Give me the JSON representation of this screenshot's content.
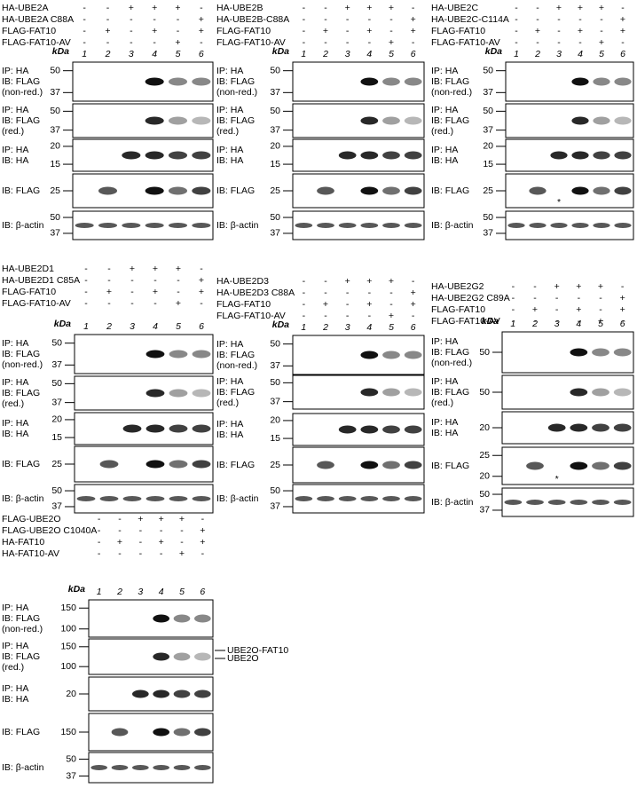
{
  "panels": [
    {
      "rows": [
        {
          "label": "HA-UBE2A",
          "signs": [
            "-",
            "-",
            "+",
            "+",
            "+",
            "-"
          ]
        },
        {
          "label": "HA-UBE2A C88A",
          "signs": [
            "-",
            "-",
            "-",
            "-",
            "-",
            "+"
          ]
        },
        {
          "label": "FLAG-FAT10",
          "signs": [
            "-",
            "+",
            "-",
            "+",
            "-",
            "+"
          ]
        },
        {
          "label": "FLAG-FAT10-AV",
          "signs": [
            "-",
            "-",
            "-",
            "-",
            "+",
            "-"
          ]
        }
      ],
      "lanes": [
        "1",
        "2",
        "3",
        "4",
        "5",
        "6"
      ],
      "kda": "kDa",
      "blots": [
        {
          "label": [
            "IP: HA",
            "IB: FLAG",
            "(non-red.)"
          ],
          "markers": [
            "50",
            "37"
          ]
        },
        {
          "label": [
            "IP: HA",
            "IB: FLAG",
            "(red.)"
          ],
          "markers": [
            "50",
            "37"
          ]
        },
        {
          "label": [
            "IP: HA",
            "IB: HA"
          ],
          "markers": [
            "20",
            "15"
          ]
        },
        {
          "label": [
            "IB: FLAG"
          ],
          "markers": [
            "25"
          ]
        },
        {
          "label": [
            "IB: β-actin"
          ],
          "markers": [
            "50",
            "37"
          ]
        }
      ]
    },
    {
      "rows": [
        {
          "label": "HA-UBE2B",
          "signs": [
            "-",
            "-",
            "+",
            "+",
            "+",
            "-"
          ]
        },
        {
          "label": "HA-UBE2B-C88A",
          "signs": [
            "-",
            "-",
            "-",
            "-",
            "-",
            "+"
          ]
        },
        {
          "label": "FLAG-FAT10",
          "signs": [
            "-",
            "+",
            "-",
            "+",
            "-",
            "+"
          ]
        },
        {
          "label": "FLAG-FAT10-AV",
          "signs": [
            "-",
            "-",
            "-",
            "-",
            "+",
            "-"
          ]
        }
      ],
      "lanes": [
        "1",
        "2",
        "3",
        "4",
        "5",
        "6"
      ],
      "kda": "kDa",
      "blots": [
        {
          "label": [
            "IP: HA",
            "IB: FLAG",
            "(non-red.)"
          ],
          "markers": [
            "50",
            "37"
          ]
        },
        {
          "label": [
            "IP: HA",
            "IB: FLAG",
            "(red.)"
          ],
          "markers": [
            "50",
            "37"
          ]
        },
        {
          "label": [
            "IP: HA",
            "IB: HA"
          ],
          "markers": [
            "20",
            "15"
          ]
        },
        {
          "label": [
            "IB: FLAG"
          ],
          "markers": [
            "25"
          ]
        },
        {
          "label": [
            "IB: β-actin"
          ],
          "markers": [
            "50",
            "37"
          ]
        }
      ]
    },
    {
      "rows": [
        {
          "label": "HA-UBE2C",
          "signs": [
            "-",
            "-",
            "+",
            "+",
            "+",
            "-"
          ]
        },
        {
          "label": "HA-UBE2C-C114A",
          "signs": [
            "-",
            "-",
            "-",
            "-",
            "-",
            "+"
          ]
        },
        {
          "label": "FLAG-FAT10",
          "signs": [
            "-",
            "+",
            "-",
            "+",
            "-",
            "+"
          ]
        },
        {
          "label": "FLAG-FAT10-AV",
          "signs": [
            "-",
            "-",
            "-",
            "-",
            "+",
            "-"
          ]
        }
      ],
      "lanes": [
        "1",
        "2",
        "3",
        "4",
        "5",
        "6"
      ],
      "kda": "kDa",
      "blots": [
        {
          "label": [
            "IP: HA",
            "IB: FLAG",
            "(non-red.)"
          ],
          "markers": [
            "50",
            "37"
          ]
        },
        {
          "label": [
            "IP: HA",
            "IB: FLAG",
            "(red.)"
          ],
          "markers": [
            "50",
            "37"
          ]
        },
        {
          "label": [
            "IP: HA",
            "IB: HA"
          ],
          "markers": [
            "20",
            "15"
          ]
        },
        {
          "label": [
            "IB: FLAG"
          ],
          "markers": [
            "25"
          ],
          "asterisk": "*"
        },
        {
          "label": [
            "IB: β-actin"
          ],
          "markers": [
            "50",
            "37"
          ]
        }
      ]
    },
    {
      "rows": [
        {
          "label": "HA-UBE2D1",
          "signs": [
            "-",
            "-",
            "+",
            "+",
            "+",
            "-"
          ]
        },
        {
          "label": "HA-UBE2D1 C85A",
          "signs": [
            "-",
            "-",
            "-",
            "-",
            "-",
            "+"
          ]
        },
        {
          "label": "FLAG-FAT10",
          "signs": [
            "-",
            "+",
            "-",
            "+",
            "-",
            "+"
          ]
        },
        {
          "label": "FLAG-FAT10-AV",
          "signs": [
            "-",
            "-",
            "-",
            "-",
            "+",
            "-"
          ]
        }
      ],
      "lanes": [
        "1",
        "2",
        "3",
        "4",
        "5",
        "6"
      ],
      "kda": "kDa",
      "blots": [
        {
          "label": [
            "IP: HA",
            "IB: FLAG",
            "(non-red.)"
          ],
          "markers": [
            "50",
            "37"
          ]
        },
        {
          "label": [
            "IP: HA",
            "IB: FLAG",
            "(red.)"
          ],
          "markers": [
            "50",
            "37"
          ]
        },
        {
          "label": [
            "IP: HA",
            "IB: HA"
          ],
          "markers": [
            "20",
            "15"
          ]
        },
        {
          "label": [
            "IB: FLAG"
          ],
          "markers": [
            "25"
          ]
        },
        {
          "label": [
            "IB: β-actin"
          ],
          "markers": [
            "50",
            "37"
          ]
        }
      ]
    },
    {
      "rows": [
        {
          "label": "HA-UBE2D3",
          "signs": [
            "-",
            "-",
            "+",
            "+",
            "+",
            "-"
          ]
        },
        {
          "label": "HA-UBE2D3 C88A",
          "signs": [
            "-",
            "-",
            "-",
            "-",
            "-",
            "+"
          ]
        },
        {
          "label": "FLAG-FAT10",
          "signs": [
            "-",
            "+",
            "-",
            "+",
            "-",
            "+"
          ]
        },
        {
          "label": "FLAG-FAT10-AV",
          "signs": [
            "-",
            "-",
            "-",
            "-",
            "+",
            "-"
          ]
        }
      ],
      "lanes": [
        "1",
        "2",
        "3",
        "4",
        "5",
        "6"
      ],
      "kda": "kDa",
      "blots": [
        {
          "label": [
            "IP: HA",
            "IB: FLAG",
            "(non-red.)"
          ],
          "markers": [
            "50",
            "37"
          ]
        },
        {
          "label": [
            "IP: HA",
            "IB: FLAG",
            "(red.)"
          ],
          "markers": [
            "50",
            "37"
          ]
        },
        {
          "label": [
            "IP: HA",
            "IB: HA"
          ],
          "markers": [
            "20",
            "15"
          ]
        },
        {
          "label": [
            "IB: FLAG"
          ],
          "markers": [
            "25"
          ]
        },
        {
          "label": [
            "IB: β-actin"
          ],
          "markers": [
            "50",
            "37"
          ]
        }
      ]
    },
    {
      "rows": [
        {
          "label": "HA-UBE2G2",
          "signs": [
            "-",
            "-",
            "+",
            "+",
            "+",
            "-"
          ]
        },
        {
          "label": "HA-UBE2G2 C89A",
          "signs": [
            "-",
            "-",
            "-",
            "-",
            "-",
            "+"
          ]
        },
        {
          "label": "FLAG-FAT10",
          "signs": [
            "-",
            "+",
            "-",
            "+",
            "-",
            "+"
          ]
        },
        {
          "label": "FLAG-FAT10-AV",
          "signs": [
            "-",
            "-",
            "-",
            "-",
            "+",
            "-"
          ]
        }
      ],
      "lanes": [
        "1",
        "2",
        "3",
        "4",
        "5",
        "6"
      ],
      "kda": "kDa",
      "blots": [
        {
          "label": [
            "IP: HA",
            "IB: FLAG",
            "(non-red.)"
          ],
          "markers": [
            "50"
          ]
        },
        {
          "label": [
            "IP: HA",
            "IB: FLAG",
            "(red.)"
          ],
          "markers": [
            "50"
          ]
        },
        {
          "label": [
            "IP: HA",
            "IB: HA"
          ],
          "markers": [
            "20"
          ]
        },
        {
          "label": [
            "IB: FLAG"
          ],
          "markers": [
            "25",
            "20"
          ],
          "asterisk": "*"
        },
        {
          "label": [
            "IB: β-actin"
          ],
          "markers": [
            "50",
            "37"
          ]
        }
      ]
    },
    {
      "rows": [
        {
          "label": "FLAG-UBE2O",
          "signs": [
            "-",
            "-",
            "+",
            "+",
            "+",
            "-"
          ]
        },
        {
          "label": "FLAG-UBE2O C1040A",
          "signs": [
            "-",
            "-",
            "-",
            "-",
            "-",
            "+"
          ]
        },
        {
          "label": "HA-FAT10",
          "signs": [
            "-",
            "+",
            "-",
            "+",
            "-",
            "+"
          ]
        },
        {
          "label": "HA-FAT10-AV",
          "signs": [
            "-",
            "-",
            "-",
            "-",
            "+",
            "-"
          ]
        }
      ],
      "lanes": [
        "1",
        "2",
        "3",
        "4",
        "5",
        "6"
      ],
      "kda": "kDa",
      "blots": [
        {
          "label": [
            "IP: HA",
            "IB: FLAG",
            "(non-red.)"
          ],
          "markers": [
            "150",
            "100"
          ]
        },
        {
          "label": [
            "IP: HA",
            "IB: FLAG",
            "(red.)"
          ],
          "markers": [
            "150",
            "100"
          ]
        },
        {
          "label": [
            "IP: HA",
            "IB: HA"
          ],
          "markers": [
            "20"
          ]
        },
        {
          "label": [
            "IB: FLAG"
          ],
          "markers": [
            "150"
          ]
        },
        {
          "label": [
            "IB: β-actin"
          ],
          "markers": [
            "50",
            "37"
          ]
        }
      ],
      "annotations": [
        "UBE2O-FAT10",
        "UBE2O"
      ]
    }
  ]
}
